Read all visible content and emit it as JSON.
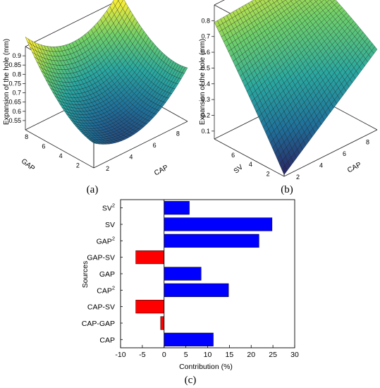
{
  "panels": {
    "a": "(a)",
    "b": "(b)",
    "c": "(c)"
  },
  "chart_data": [
    {
      "type": "surface",
      "panel": "(a)",
      "title": "",
      "zlabel": "Expansion of the hole (mm)",
      "xlabel": "CAP",
      "ylabel": "GAP",
      "x_ticks": [
        "2",
        "4",
        "6",
        "8"
      ],
      "y_ticks": [
        "2",
        "4",
        "6",
        "8"
      ],
      "z_ticks": [
        "0.55",
        "0.6",
        "0.65",
        "0.7",
        "0.75",
        "0.8",
        "0.85",
        "0.9"
      ],
      "xlim": [
        1,
        9
      ],
      "ylim": [
        1,
        9
      ],
      "zlim": [
        0.5,
        0.95
      ],
      "corner_values": {
        "cap_low_gap_low": 0.78,
        "cap_high_gap_low": 0.77,
        "cap_low_gap_high": 0.95,
        "cap_high_gap_high": 0.93,
        "minimum": 0.5
      },
      "colormap": [
        "#2a1f5e",
        "#1f6f9a",
        "#2aa8a0",
        "#6fd06a",
        "#f2ec3a"
      ],
      "grid": true
    },
    {
      "type": "surface",
      "panel": "(b)",
      "title": "",
      "zlabel": "Expansion of the hole (mm)",
      "xlabel": "CAP",
      "ylabel": "SV",
      "x_ticks": [
        "2",
        "4",
        "6",
        "8"
      ],
      "y_ticks": [
        "2",
        "4",
        "6"
      ],
      "z_ticks": [
        "0.1",
        "0.2",
        "0.3",
        "0.4",
        "0.5",
        "0.6",
        "0.7",
        "0.8"
      ],
      "xlim": [
        1,
        9
      ],
      "ylim": [
        1,
        9
      ],
      "zlim": [
        0.05,
        0.9
      ],
      "corner_values": {
        "cap_low_sv_low": 0.06,
        "cap_high_sv_low": 0.55,
        "cap_low_sv_high": 0.82,
        "cap_high_sv_high": 0.88
      },
      "colormap": [
        "#2a1f5e",
        "#1f6f9a",
        "#2aa8a0",
        "#6fd06a",
        "#f2ec3a"
      ],
      "grid": true
    },
    {
      "type": "bar",
      "orientation": "horizontal",
      "panel": "(c)",
      "title": "",
      "xlabel": "Contribution (%)",
      "ylabel": "Sources",
      "xlim": [
        -10,
        30
      ],
      "x_ticks": [
        "-10",
        "-5",
        "0",
        "5",
        "10",
        "15",
        "20",
        "25",
        "30"
      ],
      "categories": [
        {
          "base": "SV",
          "sup": "2"
        },
        {
          "base": "SV",
          "sup": ""
        },
        {
          "base": "GAP",
          "sup": "2"
        },
        {
          "base": "GAP-SV",
          "sup": ""
        },
        {
          "base": "GAP",
          "sup": ""
        },
        {
          "base": "CAP",
          "sup": "2"
        },
        {
          "base": "CAP-SV",
          "sup": ""
        },
        {
          "base": "CAP-GAP",
          "sup": ""
        },
        {
          "base": "CAP",
          "sup": ""
        }
      ],
      "values": [
        5.8,
        24.8,
        21.8,
        -6.5,
        8.5,
        14.8,
        -6.5,
        -0.8,
        11.3
      ],
      "colors": {
        "positive": "#0000ff",
        "negative": "#ff0000"
      },
      "grid": false
    }
  ]
}
